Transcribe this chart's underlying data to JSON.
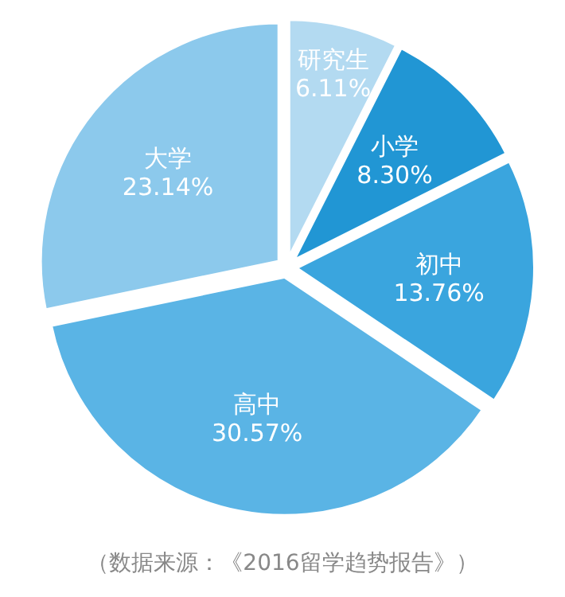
{
  "chart_data": {
    "type": "pie",
    "categories": [
      "研究生",
      "小学",
      "初中",
      "高中",
      "大学"
    ],
    "values": [
      6.11,
      8.3,
      13.76,
      30.57,
      23.14
    ],
    "value_labels": [
      "6.11%",
      "8.30%",
      "13.76%",
      "30.57%",
      "23.14%"
    ],
    "colors": [
      "#b3daf1",
      "#2196d4",
      "#3aa5de",
      "#5ab4e5",
      "#8cc9ec"
    ],
    "annotations": [
      "（数据来源：《2016留学趋势报告》）"
    ]
  }
}
